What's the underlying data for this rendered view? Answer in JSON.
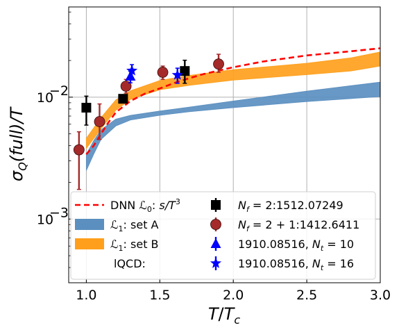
{
  "chart_data": {
    "type": "line",
    "xlabel": "T/T_c",
    "ylabel": "σ_Q(full)/T",
    "xlim": [
      0.88,
      3.0
    ],
    "ylim": [
      0.0003,
      0.055
    ],
    "yscale": "log",
    "grid": true,
    "legend_location": "lower-right",
    "x_ticks": [
      {
        "value": 1.0,
        "label": "1.0"
      },
      {
        "value": 1.5,
        "label": "1.5"
      },
      {
        "value": 2.0,
        "label": "2.0"
      },
      {
        "value": 2.5,
        "label": "2.5"
      },
      {
        "value": 3.0,
        "label": "3.0"
      }
    ],
    "y_ticks": [
      {
        "value": 0.001,
        "base": "10",
        "exp": "−3"
      },
      {
        "value": 0.01,
        "base": "10",
        "exp": "−2"
      }
    ],
    "bands": [
      {
        "name": "L1: set A",
        "color": "#5b8fc0",
        "x": [
          1.0,
          1.05,
          1.1,
          1.2,
          1.3,
          1.5,
          1.7,
          2.0,
          2.5,
          3.0
        ],
        "lower": [
          0.0025,
          0.0034,
          0.0045,
          0.0058,
          0.0065,
          0.0071,
          0.0076,
          0.0082,
          0.0092,
          0.0101
        ],
        "upper": [
          0.0034,
          0.0044,
          0.0054,
          0.0066,
          0.0071,
          0.0077,
          0.0083,
          0.0093,
          0.0112,
          0.0133
        ]
      },
      {
        "name": "L1: set B",
        "color": "#ff9f1c",
        "x": [
          1.0,
          1.1,
          1.2,
          1.3,
          1.5,
          1.7,
          2.0,
          2.5,
          2.8,
          3.0
        ],
        "lower": [
          0.0038,
          0.0055,
          0.0078,
          0.0096,
          0.0115,
          0.0125,
          0.0138,
          0.0153,
          0.0164,
          0.018
        ],
        "upper": [
          0.0046,
          0.0068,
          0.0095,
          0.0113,
          0.0137,
          0.0151,
          0.0168,
          0.019,
          0.021,
          0.0235
        ]
      }
    ],
    "lines": [
      {
        "name": "DNN L0: s/T^3",
        "color": "#ff0000",
        "dash": "8,5",
        "x": [
          1.0,
          1.05,
          1.1,
          1.15,
          1.2,
          1.3,
          1.4,
          1.5,
          1.6,
          1.7,
          1.8,
          2.0,
          2.2,
          2.5,
          2.8,
          3.0
        ],
        "y": [
          0.0034,
          0.004,
          0.005,
          0.0062,
          0.0075,
          0.0093,
          0.0107,
          0.0118,
          0.0131,
          0.0143,
          0.0155,
          0.0176,
          0.0196,
          0.022,
          0.0238,
          0.0252
        ]
      }
    ],
    "points": [
      {
        "name": "N_f = 2:1512.07249",
        "color": "#000000",
        "marker": "square",
        "data": [
          {
            "x": 1.0,
            "y": 0.0082,
            "ylo": 0.0059,
            "yhi": 0.0102
          },
          {
            "x": 1.25,
            "y": 0.0097,
            "ylo": 0.0097,
            "yhi": 0.0097
          },
          {
            "x": 1.67,
            "y": 0.0164,
            "ylo": 0.013,
            "yhi": 0.0201
          }
        ]
      },
      {
        "name": "N_f = 2+1:1412.6411",
        "color": "#a52a2a",
        "marker": "circle",
        "data": [
          {
            "x": 0.95,
            "y": 0.0037,
            "ylo": 0.00175,
            "yhi": 0.0052
          },
          {
            "x": 1.09,
            "y": 0.0063,
            "ylo": 0.0045,
            "yhi": 0.0088
          },
          {
            "x": 1.27,
            "y": 0.0123,
            "ylo": 0.0108,
            "yhi": 0.014
          },
          {
            "x": 1.52,
            "y": 0.016,
            "ylo": 0.014,
            "yhi": 0.018
          },
          {
            "x": 1.9,
            "y": 0.0187,
            "ylo": 0.016,
            "yhi": 0.0225
          }
        ]
      },
      {
        "name": "1910.08516, N_t = 10",
        "color": "#0000ff",
        "marker": "triangle",
        "data": [
          {
            "x": 1.3,
            "y": 0.0148,
            "ylo": 0.0131,
            "yhi": 0.0163
          }
        ]
      },
      {
        "name": "1910.08516, N_t = 16",
        "color": "#0000ff",
        "marker": "star",
        "data": [
          {
            "x": 1.31,
            "y": 0.0165,
            "ylo": 0.0143,
            "yhi": 0.0185
          },
          {
            "x": 1.62,
            "y": 0.0152,
            "ylo": 0.013,
            "yhi": 0.0173
          }
        ]
      }
    ],
    "legend": {
      "left": [
        {
          "key": "dnn",
          "sym": "dash",
          "color": "#ff0000",
          "label": "DNN ℒ₀: s/T³"
        },
        {
          "key": "setA",
          "sym": "rect",
          "color": "#5b8fc0",
          "label": "ℒ₁: set A"
        },
        {
          "key": "setB",
          "sym": "rect",
          "color": "#ff9f1c",
          "label": "ℒ₁: set B"
        },
        {
          "key": "lqcd",
          "sym": "none",
          "color": "",
          "label": "lQCD:"
        }
      ],
      "right": [
        {
          "key": "nf2",
          "sym": "square",
          "color": "#000000",
          "label": "N_f = 2:1512.07249"
        },
        {
          "key": "nf21",
          "sym": "circle",
          "color": "#a52a2a",
          "label": "N_f = 2 + 1:1412.6411"
        },
        {
          "key": "nt10",
          "sym": "triangle",
          "color": "#0000ff",
          "label": "1910.08516, N_t = 10"
        },
        {
          "key": "nt16",
          "sym": "star",
          "color": "#0000ff",
          "label": "1910.08516, N_t = 16"
        }
      ]
    }
  }
}
